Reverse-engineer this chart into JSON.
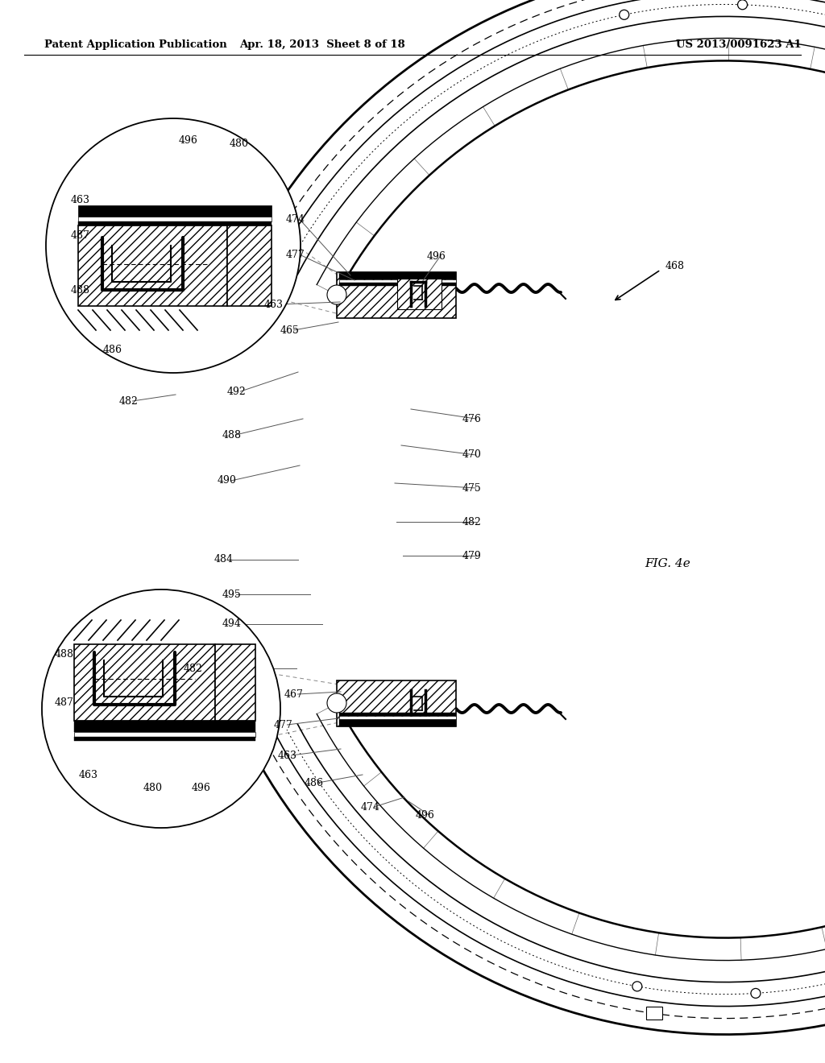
{
  "title_left": "Patent Application Publication",
  "title_center": "Apr. 18, 2013  Sheet 8 of 18",
  "title_right": "US 2013/0091623 A1",
  "fig_label": "FIG. 4e",
  "background_color": "#ffffff",
  "line_color": "#000000",
  "annotation_fontsize": 9,
  "header_fontsize": 9.5
}
